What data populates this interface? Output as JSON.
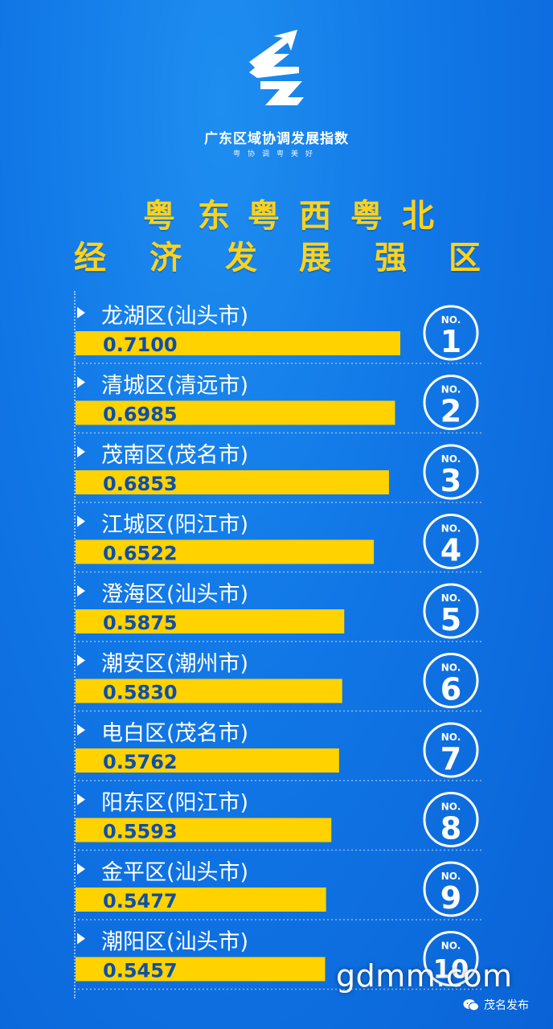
{
  "brand": {
    "title": "广东区域协调发展指数",
    "subtitle": "粤协调粤美好"
  },
  "heading": {
    "line1": [
      "粤",
      "东",
      "粤",
      "西",
      "粤",
      "北"
    ],
    "line2": [
      "经",
      "济",
      "发",
      "展",
      "强",
      "区"
    ]
  },
  "chart_data": {
    "type": "bar",
    "orientation": "horizontal",
    "categories": [
      "龙湖区(汕头市)",
      "清城区(清远市)",
      "茂南区(茂名市)",
      "江城区(阳江市)",
      "澄海区(汕头市)",
      "潮安区(潮州市)",
      "电白区(茂名市)",
      "阳东区(阳江市)",
      "金平区(汕头市)",
      "潮阳区(汕头市)"
    ],
    "values": [
      0.71,
      0.6985,
      0.6853,
      0.6522,
      0.5875,
      0.583,
      0.5762,
      0.5593,
      0.5477,
      0.5457
    ],
    "value_labels": [
      "0.7100",
      "0.6985",
      "0.6853",
      "0.6522",
      "0.5875",
      "0.5830",
      "0.5762",
      "0.5593",
      "0.5477",
      "0.5457"
    ],
    "ranks": [
      "1",
      "2",
      "3",
      "4",
      "5",
      "6",
      "7",
      "8",
      "9",
      "10"
    ],
    "rank_prefix": "NO.",
    "bar_color": "#ffd200",
    "value_text_color": "#0f4fa8"
  },
  "watermark": "gdmm.com",
  "wechat": {
    "icon": "wechat-icon",
    "account": "茂名发布"
  }
}
